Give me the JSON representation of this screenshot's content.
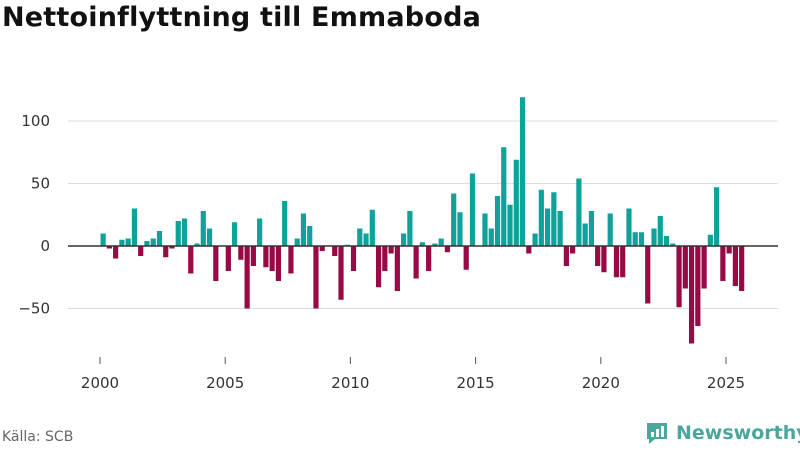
{
  "title": "Nettoinflyttning till Emmaboda",
  "source": "Källa: SCB",
  "brand": {
    "name": "Newsworthy",
    "icon": "newsworthy-logo-icon"
  },
  "colors": {
    "positive": "#10a19a",
    "negative": "#970a45",
    "grid": "#dddddd",
    "zero": "#333333"
  },
  "chart_data": {
    "type": "bar",
    "title": "Nettoinflyttning till Emmaboda",
    "xlabel": "",
    "ylabel": "",
    "x_ticks": [
      2000,
      2005,
      2010,
      2015,
      2020,
      2025
    ],
    "y_ticks": [
      -50,
      0,
      50,
      100
    ],
    "y_tick_labels": [
      "−50",
      "0",
      "50",
      "100"
    ],
    "xlim": [
      1999.2,
      2026.2
    ],
    "ylim": [
      -85,
      125
    ],
    "grid": true,
    "series": [
      {
        "name": "Nettoinflyttning",
        "x": [
          2000.125,
          2000.375,
          2000.625,
          2000.875,
          2001.125,
          2001.375,
          2001.625,
          2001.875,
          2002.125,
          2002.375,
          2002.625,
          2002.875,
          2003.125,
          2003.375,
          2003.625,
          2003.875,
          2004.125,
          2004.375,
          2004.625,
          2004.875,
          2005.125,
          2005.375,
          2005.625,
          2005.875,
          2006.125,
          2006.375,
          2006.625,
          2006.875,
          2007.125,
          2007.375,
          2007.625,
          2007.875,
          2008.125,
          2008.375,
          2008.625,
          2008.875,
          2009.125,
          2009.375,
          2009.625,
          2009.875,
          2010.125,
          2010.375,
          2010.625,
          2010.875,
          2011.125,
          2011.375,
          2011.625,
          2011.875,
          2012.125,
          2012.375,
          2012.625,
          2012.875,
          2013.125,
          2013.375,
          2013.625,
          2013.875,
          2014.125,
          2014.375,
          2014.625,
          2014.875,
          2015.125,
          2015.375,
          2015.625,
          2015.875,
          2016.125,
          2016.375,
          2016.625,
          2016.875,
          2017.125,
          2017.375,
          2017.625,
          2017.875,
          2018.125,
          2018.375,
          2018.625,
          2018.875,
          2019.125,
          2019.375,
          2019.625,
          2019.875,
          2020.125,
          2020.375,
          2020.625,
          2020.875,
          2021.125,
          2021.375,
          2021.625,
          2021.875,
          2022.125,
          2022.375,
          2022.625,
          2022.875,
          2023.125,
          2023.375,
          2023.625,
          2023.875,
          2024.125,
          2024.375,
          2024.625,
          2024.875,
          2025.125,
          2025.375,
          2025.625
        ],
        "values": [
          10,
          -2,
          -10,
          5,
          6,
          30,
          -8,
          4,
          6,
          12,
          -9,
          -2,
          20,
          22,
          -22,
          2,
          28,
          14,
          -28,
          0,
          -20,
          19,
          -11,
          -50,
          -16,
          22,
          -17,
          -20,
          -28,
          36,
          -22,
          6,
          26,
          16,
          -50,
          -4,
          0,
          -8,
          -43,
          1,
          -20,
          14,
          10,
          29,
          -33,
          -20,
          -6,
          -36,
          10,
          28,
          -26,
          3,
          -20,
          2,
          6,
          -5,
          42,
          27,
          -19,
          58,
          0,
          26,
          14,
          40,
          79,
          33,
          69,
          119,
          -6,
          10,
          45,
          30,
          43,
          28,
          -16,
          -6,
          54,
          18,
          28,
          -16,
          -21,
          26,
          -25,
          -25,
          30,
          11,
          11,
          -46,
          14,
          24,
          8,
          2,
          -49,
          -34,
          -78,
          -64,
          -34,
          9,
          47,
          -28,
          -6,
          -32,
          -36
        ]
      }
    ]
  }
}
